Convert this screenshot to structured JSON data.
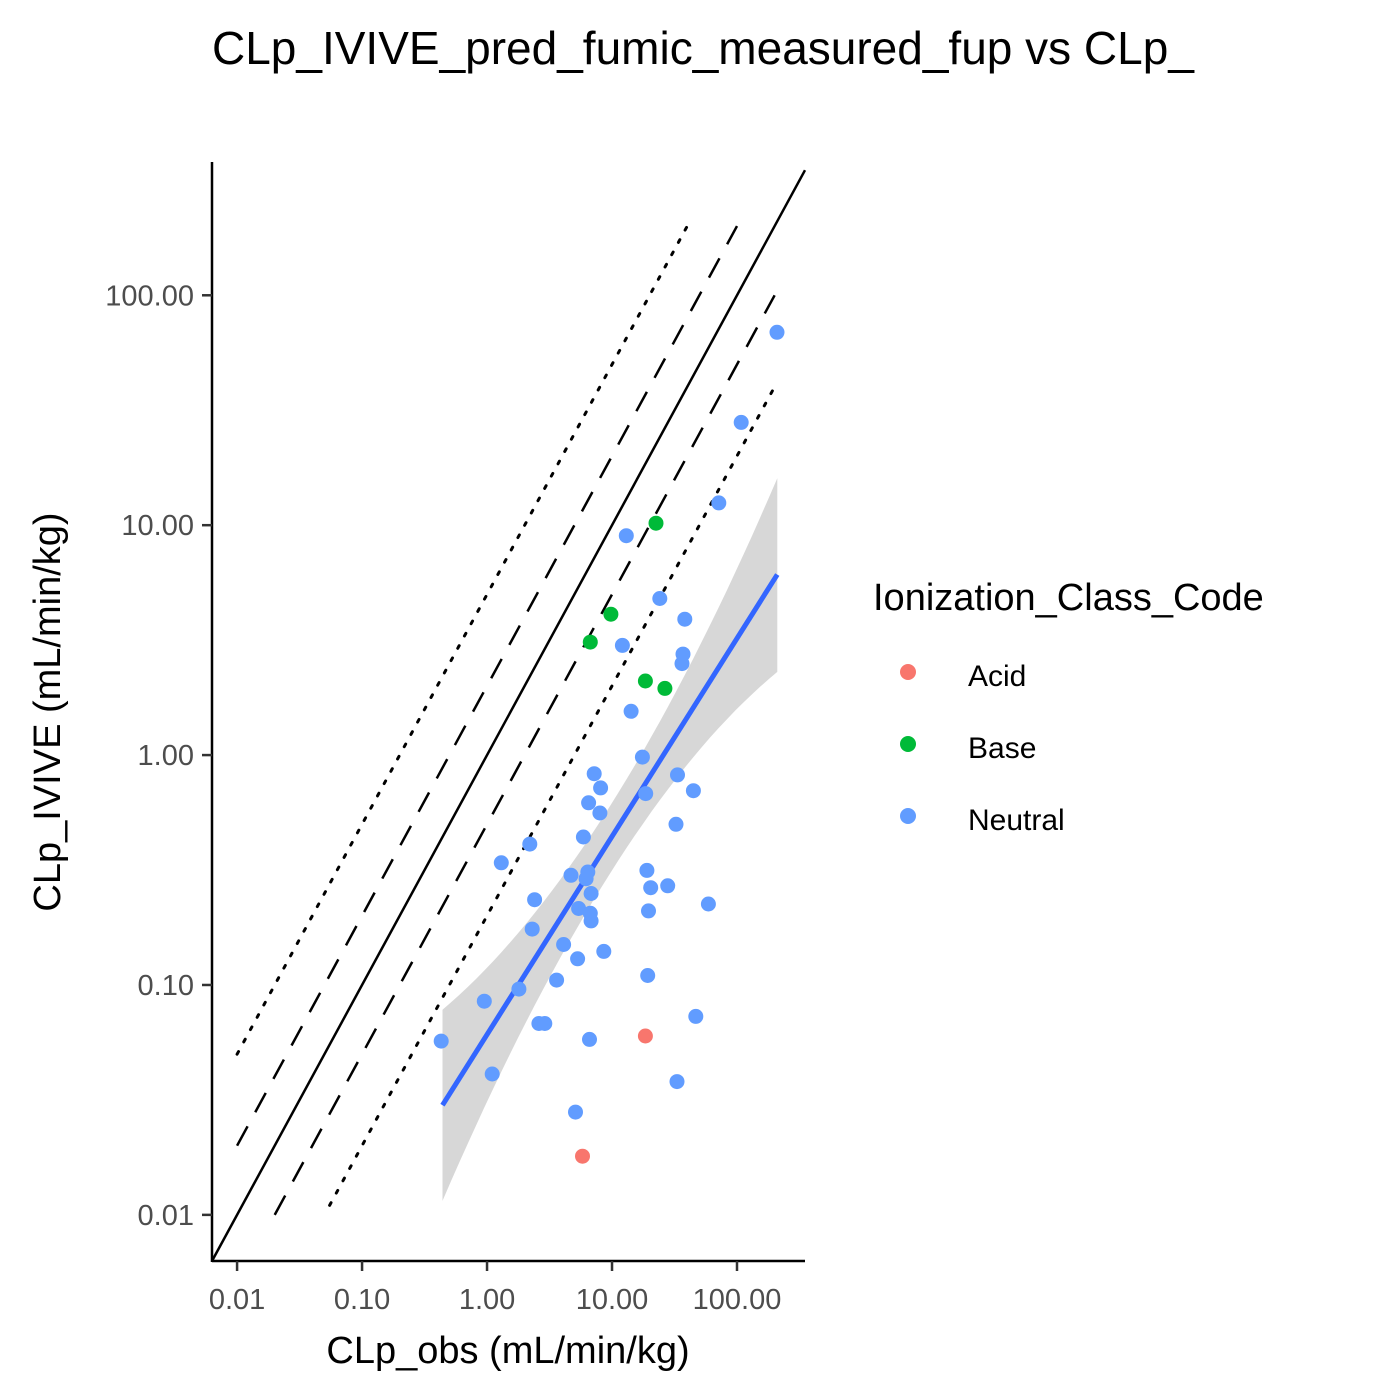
{
  "chart_data": {
    "type": "scatter",
    "title": "CLp_IVIVE_pred_fumic_measured_fup vs CLp_",
    "xlabel": "CLp_obs (mL/min/kg)",
    "ylabel": "CLp_IVIVE (mL/min/kg)",
    "x_scale": "log10",
    "y_scale": "log10",
    "xlim": [
      0.0063,
      350
    ],
    "ylim": [
      0.0063,
      380
    ],
    "x_ticks": [
      0.01,
      0.1,
      1,
      10,
      100
    ],
    "x_tick_labels": [
      "0.01",
      "0.10",
      "1.00",
      "10.00",
      "100.00"
    ],
    "y_ticks": [
      0.01,
      0.1,
      1,
      10,
      100
    ],
    "y_tick_labels": [
      "0.01",
      "0.10",
      "1.00",
      "10.00",
      "100.00"
    ],
    "grid": false,
    "legend": {
      "title": "Ionization_Class_Code",
      "position": "right",
      "entries": [
        {
          "label": "Acid",
          "color": "#F8766D"
        },
        {
          "label": "Base",
          "color": "#00BA38"
        },
        {
          "label": "Neutral",
          "color": "#619CFF"
        }
      ]
    },
    "reference_lines": [
      {
        "style": "solid",
        "fold": 1,
        "x": [
          0.0063,
          350
        ]
      },
      {
        "style": "dashed",
        "fold": 2,
        "x": [
          0.01,
          100
        ]
      },
      {
        "style": "dashed",
        "fold": 0.5,
        "x": [
          0.02,
          200
        ]
      },
      {
        "style": "dotted",
        "fold": 5,
        "x": [
          0.01,
          40
        ]
      },
      {
        "style": "dotted",
        "fold": 0.2,
        "x": [
          0.055,
          200
        ]
      }
    ],
    "trend_line": {
      "method": "lm",
      "color": "#3366FF",
      "x": [
        0.44,
        210
      ],
      "y": [
        0.03,
        6.1
      ],
      "ci_lower": [
        0.0115,
        2.3
      ],
      "ci_upper": [
        0.078,
        16.0
      ],
      "ribbon_color": "#d3d3d3"
    },
    "series": [
      {
        "name": "Acid",
        "color": "#F8766D",
        "points": [
          [
            5.8,
            0.018
          ],
          [
            18.5,
            0.06
          ]
        ]
      },
      {
        "name": "Base",
        "color": "#00BA38",
        "points": [
          [
            6.7,
            3.1
          ],
          [
            9.8,
            4.1
          ],
          [
            18.5,
            2.1
          ],
          [
            22.5,
            10.2
          ],
          [
            26.5,
            1.95
          ]
        ]
      },
      {
        "name": "Neutral",
        "color": "#619CFF",
        "points": [
          [
            0.43,
            0.057
          ],
          [
            0.95,
            0.085
          ],
          [
            1.1,
            0.041
          ],
          [
            1.3,
            0.34
          ],
          [
            1.8,
            0.096
          ],
          [
            2.2,
            0.41
          ],
          [
            2.3,
            0.175
          ],
          [
            2.4,
            0.235
          ],
          [
            2.6,
            0.068
          ],
          [
            2.9,
            0.068
          ],
          [
            3.6,
            0.105
          ],
          [
            4.1,
            0.15
          ],
          [
            4.7,
            0.3
          ],
          [
            5.1,
            0.028
          ],
          [
            5.3,
            0.13
          ],
          [
            5.4,
            0.215
          ],
          [
            5.9,
            0.44
          ],
          [
            6.2,
            0.29
          ],
          [
            6.4,
            0.31
          ],
          [
            6.5,
            0.62
          ],
          [
            6.6,
            0.058
          ],
          [
            6.7,
            0.205
          ],
          [
            6.8,
            0.25
          ],
          [
            6.8,
            0.19
          ],
          [
            7.2,
            0.83
          ],
          [
            8.0,
            0.56
          ],
          [
            8.1,
            0.72
          ],
          [
            8.6,
            0.14
          ],
          [
            12.1,
            3.0
          ],
          [
            13.0,
            9.0
          ],
          [
            14.2,
            1.55
          ],
          [
            17.5,
            0.98
          ],
          [
            18.6,
            0.68
          ],
          [
            19.0,
            0.315
          ],
          [
            19.3,
            0.11
          ],
          [
            19.6,
            0.21
          ],
          [
            20.4,
            0.265
          ],
          [
            24.1,
            4.8
          ],
          [
            27.9,
            0.27
          ],
          [
            32.5,
            0.5
          ],
          [
            33.1,
            0.038
          ],
          [
            33.4,
            0.82
          ],
          [
            36.3,
            2.5
          ],
          [
            37.0,
            2.75
          ],
          [
            38.2,
            3.9
          ],
          [
            44.8,
            0.7
          ],
          [
            46.8,
            0.073
          ],
          [
            59.0,
            0.225
          ],
          [
            71.5,
            12.5
          ],
          [
            108.0,
            28.0
          ],
          [
            209.0,
            69.0
          ]
        ]
      }
    ]
  }
}
